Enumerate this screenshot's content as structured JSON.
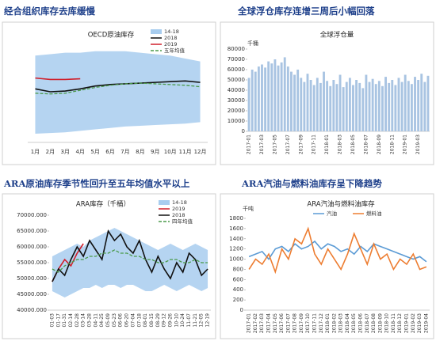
{
  "chart_data": [
    {
      "type": "line",
      "heading": "经合组织库存去库缓慢",
      "title": "OECD原油库存",
      "legend": "upper right",
      "categories": [
        "1月",
        "2月",
        "3月",
        "4月",
        "5月",
        "6月",
        "7月",
        "8月",
        "9月",
        "10月",
        "11月",
        "12月"
      ],
      "ylim": [
        2500,
        3200
      ],
      "series": [
        {
          "name": "14-18",
          "color": "#a8cdef",
          "kind": "band",
          "high": [
            3100,
            3110,
            3120,
            3120,
            3130,
            3130,
            3130,
            3120,
            3110,
            3100,
            3080,
            3060
          ],
          "low": [
            2560,
            2565,
            2570,
            2580,
            2590,
            2600,
            2610,
            2615,
            2620,
            2625,
            2630,
            2640
          ]
        },
        {
          "name": "2018",
          "color": "#111111",
          "values": [
            2870,
            2850,
            2855,
            2870,
            2890,
            2900,
            2905,
            2910,
            2915,
            2920,
            2925,
            2915
          ]
        },
        {
          "name": "2019",
          "color": "#d0202c",
          "values": [
            2945,
            2935,
            2935,
            2940,
            null,
            null,
            null,
            null,
            null,
            null,
            null,
            null
          ]
        },
        {
          "name": "五年均值",
          "color": "#4a9a4a",
          "dash": true,
          "values": [
            2840,
            2835,
            2840,
            2860,
            2880,
            2895,
            2905,
            2910,
            2905,
            2900,
            2895,
            2885
          ]
        }
      ]
    },
    {
      "type": "bar",
      "heading": "全球浮仓库存连增三周后小幅回落",
      "title": "全球浮仓量",
      "ylabel": "千桶",
      "color": "#a9c4e2",
      "categories": [
        "2017-01",
        null,
        null,
        null,
        "2017-03",
        null,
        null,
        null,
        "2017-05",
        null,
        null,
        null,
        "2017-07",
        null,
        null,
        null,
        "2017-09",
        null,
        null,
        null,
        "2017-11",
        null,
        null,
        null,
        "2018-01",
        null,
        null,
        null,
        "2018-03",
        null,
        null,
        null,
        "2018-05",
        null,
        null,
        null,
        "2018-07",
        null,
        null,
        null,
        "2018-09",
        null,
        null,
        null,
        "2018-11",
        null,
        null,
        null,
        "2019-01",
        null,
        null,
        null,
        "2019-03",
        null,
        null,
        null
      ],
      "values": [
        52000,
        60000,
        58000,
        63000,
        65000,
        62000,
        68000,
        66000,
        70000,
        64000,
        67000,
        72000,
        63000,
        58000,
        55000,
        60000,
        52000,
        48000,
        56000,
        50000,
        45000,
        52000,
        47000,
        58000,
        49000,
        44000,
        50000,
        46000,
        55000,
        43000,
        48000,
        52000,
        45000,
        50000,
        47000,
        42000,
        55000,
        48000,
        51000,
        46000,
        49000,
        44000,
        53000,
        47000,
        50000,
        45000,
        52000,
        48000,
        55000,
        49000,
        46000,
        53000,
        50000,
        56000,
        48000,
        54000
      ],
      "ylim": [
        0,
        80000
      ],
      "yticks": [
        0,
        10000,
        20000,
        30000,
        40000,
        50000,
        60000,
        70000,
        80000
      ]
    },
    {
      "type": "line",
      "heading": "ARA原油库存季节性回升至五年均值水平以上",
      "title": "ARA库存（千桶）",
      "legend": "upper right",
      "categories": [
        "01-03",
        "01-17",
        "01-31",
        "02-14",
        "02-28",
        "03-14",
        "03-28",
        "04-11",
        "04-25",
        "05-09",
        "05-23",
        "06-06",
        "06-20",
        "07-04",
        "07-18",
        "08-01",
        "08-15",
        "08-29",
        "09-12",
        "09-26",
        "10-10",
        "10-24",
        "11-07",
        "11-21",
        "12-05",
        "12-19"
      ],
      "ylim": [
        40000,
        70000
      ],
      "yticks": [
        {
          "value": 40000,
          "label": "40000.000"
        },
        {
          "value": 45000,
          "label": "45000.000"
        },
        {
          "value": 50000,
          "label": "50000.000"
        },
        {
          "value": 55000,
          "label": "55000.000"
        },
        {
          "value": 60000,
          "label": "60000.000"
        },
        {
          "value": 65000,
          "label": "65000.000"
        },
        {
          "value": 70000,
          "label": "70000.000"
        }
      ],
      "series": [
        {
          "name": "14-18",
          "color": "#a8cdef",
          "kind": "band",
          "high": [
            57000,
            58000,
            59000,
            60000,
            61000,
            60000,
            62000,
            63000,
            64000,
            65000,
            66000,
            65000,
            64000,
            63000,
            62000,
            61000,
            60000,
            59000,
            60000,
            61000,
            60000,
            59000,
            60000,
            61000,
            60000,
            59000
          ],
          "low": [
            46000,
            45000,
            44000,
            45000,
            46000,
            47000,
            47000,
            48000,
            47000,
            48000,
            48000,
            47000,
            48000,
            48000,
            47000,
            46000,
            46000,
            47000,
            48000,
            47000,
            46000,
            47000,
            48000,
            47000,
            46000,
            47000
          ]
        },
        {
          "name": "2019",
          "color": "#d0202c",
          "values": [
            49000,
            53000,
            56000,
            54000,
            58000,
            61000,
            null,
            null,
            null,
            null,
            null,
            null,
            null,
            null,
            null,
            null,
            null,
            null,
            null,
            null,
            null,
            null,
            null,
            null,
            null,
            null
          ]
        },
        {
          "name": "2018",
          "color": "#111111",
          "values": [
            49000,
            53000,
            51000,
            56000,
            60000,
            57000,
            62000,
            59000,
            56000,
            65000,
            62000,
            64000,
            60000,
            58000,
            62000,
            56000,
            52000,
            57000,
            53000,
            50000,
            55000,
            52000,
            58000,
            56000,
            51000,
            53000
          ]
        },
        {
          "name": "四年均值",
          "color": "#4a9a4a",
          "dash": true,
          "values": [
            53000,
            52000,
            54000,
            55000,
            56000,
            56000,
            57000,
            57000,
            58000,
            58000,
            59000,
            58000,
            58000,
            57000,
            57000,
            56000,
            56000,
            55000,
            55000,
            56000,
            56000,
            55000,
            55000,
            56000,
            55000,
            55000
          ]
        }
      ]
    },
    {
      "type": "line",
      "heading": "ARA汽油与燃料油库存呈下降趋势",
      "title": "ARA汽油与燃料油库存",
      "ylabel": "千吨",
      "legend": "upper center",
      "categories": [
        "2017-01",
        "2017-02",
        "2017-03",
        "2017-04",
        "2017-05",
        "2017-06",
        "2017-07",
        "2017-08",
        "2017-09",
        "2017-10",
        "2017-11",
        "2017-12",
        "2018-01",
        "2018-02",
        "2018-03",
        "2018-04",
        "2018-05",
        "2018-06",
        "2018-07",
        "2018-08",
        "2018-09",
        "2018-10",
        "2018-11",
        "2018-12",
        "2019-01",
        "2019-02",
        "2019-03",
        "2019-04"
      ],
      "ylim": [
        0,
        1800
      ],
      "yticks": [
        0,
        200,
        400,
        600,
        800,
        1000,
        1200,
        1400,
        1600,
        1800
      ],
      "series": [
        {
          "name": "汽油",
          "color": "#5b9bd5",
          "values": [
            1050,
            1100,
            1150,
            1000,
            1200,
            1250,
            1150,
            1300,
            1200,
            1250,
            1350,
            1200,
            1300,
            1250,
            1150,
            1200,
            1100,
            1250,
            1150,
            1300,
            1250,
            1200,
            1150,
            1100,
            1050,
            1000,
            1050,
            950
          ]
        },
        {
          "name": "燃料油",
          "color": "#ed7d31",
          "values": [
            800,
            1000,
            900,
            1100,
            750,
            1200,
            1000,
            1400,
            1300,
            1600,
            1100,
            900,
            1200,
            1000,
            800,
            1100,
            1500,
            1200,
            900,
            1300,
            1000,
            1100,
            800,
            1000,
            900,
            1100,
            800,
            850
          ]
        }
      ]
    }
  ]
}
